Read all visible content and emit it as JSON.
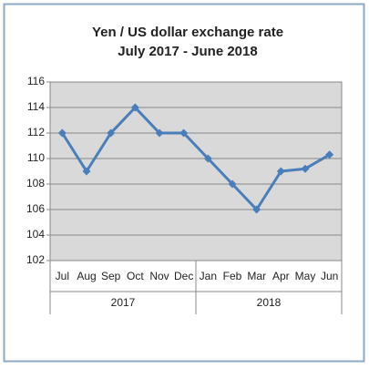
{
  "chart_data": {
    "type": "line",
    "title": "Yen / US dollar exchange rate",
    "subtitle": "July 2017 - June 2018",
    "categories": [
      "Jul",
      "Aug",
      "Sep",
      "Oct",
      "Nov",
      "Dec",
      "Jan",
      "Feb",
      "Mar",
      "Apr",
      "May",
      "Jun"
    ],
    "x_groups": [
      "2017",
      "2018"
    ],
    "series": [
      {
        "name": "Yen / US dollar",
        "color": "#4a7ebb",
        "values": [
          112,
          109,
          112,
          114,
          112,
          112,
          110,
          108,
          106,
          109,
          109.2,
          110.3
        ]
      }
    ],
    "ylim": [
      102,
      116
    ],
    "yticks": [
      102,
      104,
      106,
      108,
      110,
      112,
      114,
      116
    ],
    "grid": true
  }
}
